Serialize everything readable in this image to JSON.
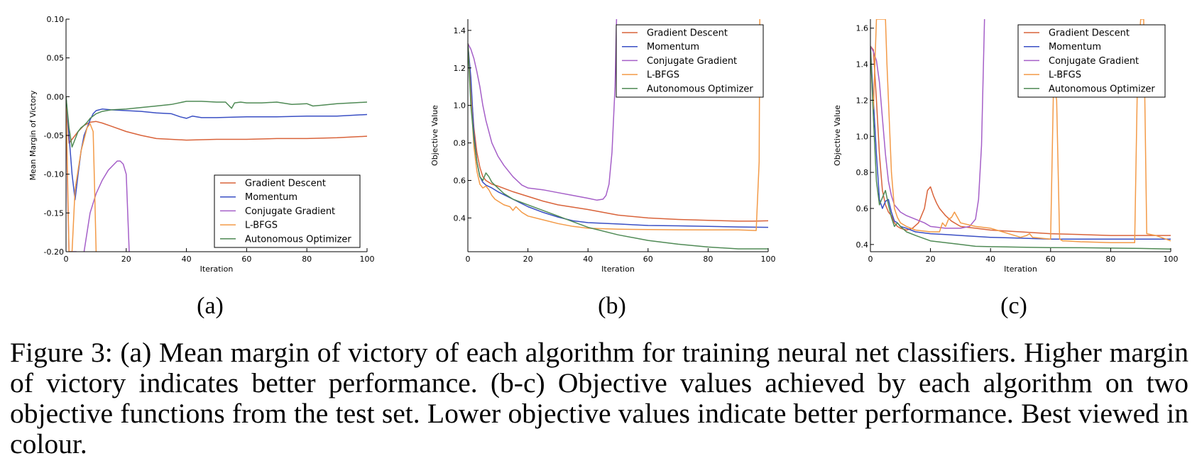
{
  "figure": {
    "caption": "Figure 3:  (a) Mean margin of victory of each algorithm for training neural net classifiers. Higher margin of victory indicates better performance. (b-c) Objective values achieved by each algorithm on two objective functions from the test set. Lower objective values indicate better performance. Best viewed in colour."
  },
  "colors": {
    "Gradient Descent": "#d9633a",
    "Momentum": "#3a4fc4",
    "Conjugate Gradient": "#a55fc8",
    "L-BFGS": "#f39a47",
    "Autonomous Optimizer": "#4f8a55"
  },
  "chart_data": [
    {
      "id": "a",
      "type": "line",
      "sublabel": "(a)",
      "xlabel": "Iteration",
      "ylabel": "Mean Margin of Victory",
      "xlim": [
        0,
        100
      ],
      "ylim": [
        -0.2,
        0.1
      ],
      "xticks": [
        0,
        20,
        40,
        60,
        80,
        100
      ],
      "yticks": [
        -0.2,
        -0.15,
        -0.1,
        -0.05,
        0.0,
        0.05,
        0.1
      ],
      "ytick_labels": [
        "-0.20",
        "-0.15",
        "-0.10",
        "-0.05",
        "0.00",
        "0.05",
        "0.10"
      ],
      "legend": "lower-right",
      "series": [
        {
          "name": "Gradient Descent",
          "x": [
            0,
            1,
            2,
            4,
            6,
            8,
            10,
            12,
            15,
            20,
            25,
            30,
            40,
            50,
            60,
            70,
            80,
            90,
            100
          ],
          "y": [
            0,
            -0.06,
            -0.055,
            -0.045,
            -0.037,
            -0.033,
            -0.032,
            -0.034,
            -0.038,
            -0.045,
            -0.05,
            -0.054,
            -0.056,
            -0.055,
            -0.055,
            -0.054,
            -0.054,
            -0.053,
            -0.051
          ]
        },
        {
          "name": "Momentum",
          "x": [
            0,
            1,
            2,
            3,
            4,
            5,
            6,
            7,
            8,
            9,
            10,
            12,
            15,
            20,
            25,
            30,
            35,
            38,
            40,
            42,
            45,
            50,
            60,
            70,
            80,
            90,
            100
          ],
          "y": [
            0,
            -0.05,
            -0.1,
            -0.133,
            -0.1,
            -0.07,
            -0.05,
            -0.04,
            -0.03,
            -0.022,
            -0.018,
            -0.016,
            -0.017,
            -0.018,
            -0.019,
            -0.021,
            -0.022,
            -0.026,
            -0.028,
            -0.025,
            -0.027,
            -0.027,
            -0.026,
            -0.026,
            -0.025,
            -0.025,
            -0.023
          ]
        },
        {
          "name": "Conjugate Gradient",
          "x": [
            0,
            0.5,
            1,
            2,
            3,
            3.5
          ],
          "y": [
            0,
            -0.12,
            -0.2,
            -0.2,
            -0.2,
            -0.2
          ]
        },
        {
          "name": "Conjugate Gradient",
          "x": [
            6,
            8,
            10,
            12,
            14,
            16,
            17,
            18,
            19,
            20,
            21
          ],
          "y": [
            -0.2,
            -0.15,
            -0.125,
            -0.108,
            -0.095,
            -0.087,
            -0.083,
            -0.083,
            -0.087,
            -0.1,
            -0.2
          ]
        },
        {
          "name": "L-BFGS",
          "x": [
            0,
            1,
            2,
            3,
            5,
            7,
            8,
            9,
            9.5,
            10
          ],
          "y": [
            0,
            -0.2,
            -0.2,
            -0.12,
            -0.07,
            -0.04,
            -0.035,
            -0.045,
            -0.12,
            -0.2
          ]
        },
        {
          "name": "Autonomous Optimizer",
          "x": [
            0,
            1,
            2,
            3,
            4,
            5,
            6,
            7,
            8,
            10,
            12,
            15,
            20,
            25,
            30,
            35,
            40,
            45,
            50,
            53,
            55,
            56,
            58,
            60,
            65,
            70,
            75,
            80,
            82,
            85,
            90,
            95,
            100
          ],
          "y": [
            0,
            -0.04,
            -0.065,
            -0.055,
            -0.045,
            -0.04,
            -0.037,
            -0.033,
            -0.028,
            -0.022,
            -0.019,
            -0.017,
            -0.016,
            -0.014,
            -0.012,
            -0.01,
            -0.006,
            -0.006,
            -0.007,
            -0.007,
            -0.015,
            -0.008,
            -0.007,
            -0.008,
            -0.008,
            -0.007,
            -0.01,
            -0.009,
            -0.012,
            -0.011,
            -0.009,
            -0.008,
            -0.007
          ]
        }
      ]
    },
    {
      "id": "b",
      "type": "line",
      "sublabel": "(b)",
      "xlabel": "Iteration",
      "ylabel": "Objective Value",
      "xlim": [
        0,
        100
      ],
      "ylim": [
        0.22,
        1.46
      ],
      "xticks": [
        0,
        20,
        40,
        60,
        80,
        100
      ],
      "yticks": [
        0.4,
        0.6,
        0.8,
        1.0,
        1.2,
        1.4
      ],
      "ytick_labels": [
        "0.4",
        "0.6",
        "0.8",
        "1.0",
        "1.2",
        "1.4"
      ],
      "legend": "top-right",
      "series": [
        {
          "name": "Gradient Descent",
          "x": [
            0,
            1,
            2,
            3,
            4,
            5,
            6,
            8,
            10,
            15,
            20,
            25,
            30,
            40,
            50,
            60,
            70,
            80,
            90,
            95,
            100
          ],
          "y": [
            1.33,
            1.1,
            0.88,
            0.75,
            0.67,
            0.62,
            0.6,
            0.58,
            0.57,
            0.54,
            0.515,
            0.49,
            0.47,
            0.445,
            0.415,
            0.4,
            0.392,
            0.387,
            0.383,
            0.383,
            0.385
          ]
        },
        {
          "name": "Momentum",
          "x": [
            0,
            1,
            2,
            3,
            4,
            5,
            6,
            8,
            10,
            15,
            20,
            25,
            30,
            35,
            40,
            50,
            60,
            70,
            80,
            90,
            100
          ],
          "y": [
            1.33,
            1.15,
            0.85,
            0.7,
            0.62,
            0.59,
            0.575,
            0.56,
            0.54,
            0.5,
            0.46,
            0.43,
            0.405,
            0.385,
            0.375,
            0.368,
            0.36,
            0.358,
            0.355,
            0.352,
            0.35
          ]
        },
        {
          "name": "Conjugate Gradient",
          "x": [
            0,
            1,
            2,
            3,
            4,
            5,
            6,
            7,
            8,
            10,
            12,
            15,
            18,
            20,
            25,
            30,
            35,
            40,
            43,
            45,
            46,
            47,
            48,
            49,
            49.5
          ],
          "y": [
            1.33,
            1.3,
            1.25,
            1.18,
            1.1,
            1.0,
            0.92,
            0.86,
            0.8,
            0.73,
            0.68,
            0.62,
            0.575,
            0.56,
            0.55,
            0.535,
            0.52,
            0.505,
            0.495,
            0.5,
            0.52,
            0.58,
            0.75,
            1.1,
            1.46
          ]
        },
        {
          "name": "L-BFGS",
          "x": [
            0,
            1,
            2,
            3,
            4,
            5,
            6,
            7,
            8,
            9,
            10,
            12,
            14,
            15,
            16,
            18,
            20,
            25,
            30,
            35,
            40,
            50,
            60,
            70,
            80,
            90,
            96,
            97,
            97.2
          ],
          "y": [
            1.33,
            1.05,
            0.78,
            0.65,
            0.58,
            0.56,
            0.57,
            0.55,
            0.52,
            0.5,
            0.49,
            0.47,
            0.46,
            0.44,
            0.46,
            0.43,
            0.41,
            0.39,
            0.37,
            0.355,
            0.345,
            0.34,
            0.338,
            0.337,
            0.336,
            0.336,
            0.333,
            0.7,
            1.46
          ]
        },
        {
          "name": "Autonomous Optimizer",
          "x": [
            0,
            1,
            2,
            3,
            4,
            5,
            6,
            7,
            8,
            10,
            12,
            15,
            20,
            25,
            30,
            35,
            40,
            50,
            60,
            70,
            80,
            90,
            100
          ],
          "y": [
            1.33,
            1.0,
            0.82,
            0.7,
            0.62,
            0.6,
            0.64,
            0.62,
            0.59,
            0.56,
            0.53,
            0.5,
            0.47,
            0.44,
            0.41,
            0.38,
            0.35,
            0.31,
            0.28,
            0.26,
            0.245,
            0.235,
            0.235
          ]
        }
      ]
    },
    {
      "id": "c",
      "type": "line",
      "sublabel": "(c)",
      "xlabel": "Iteration",
      "ylabel": "Objective Value",
      "xlim": [
        0,
        100
      ],
      "ylim": [
        0.36,
        1.65
      ],
      "xticks": [
        0,
        20,
        40,
        60,
        80,
        100
      ],
      "yticks": [
        0.4,
        0.6,
        0.8,
        1.0,
        1.2,
        1.4,
        1.6
      ],
      "ytick_labels": [
        "0.4",
        "0.6",
        "0.8",
        "1.0",
        "1.2",
        "1.4",
        "1.6"
      ],
      "legend": "top-right",
      "series": [
        {
          "name": "Gradient Descent",
          "x": [
            0,
            1,
            2,
            3,
            4,
            5,
            6,
            7,
            8,
            9,
            10,
            12,
            14,
            16,
            18,
            19,
            20,
            21,
            22,
            23,
            25,
            27,
            30,
            35,
            40,
            50,
            60,
            70,
            80,
            90,
            100
          ],
          "y": [
            1.5,
            1.48,
            1.2,
            0.9,
            0.7,
            0.62,
            0.58,
            0.56,
            0.52,
            0.5,
            0.49,
            0.48,
            0.49,
            0.52,
            0.6,
            0.7,
            0.72,
            0.67,
            0.63,
            0.6,
            0.56,
            0.53,
            0.5,
            0.49,
            0.48,
            0.47,
            0.46,
            0.455,
            0.45,
            0.45,
            0.45
          ]
        },
        {
          "name": "Momentum",
          "x": [
            0,
            1,
            2,
            3,
            4,
            5,
            6,
            7,
            8,
            9,
            10,
            12,
            15,
            20,
            25,
            30,
            40,
            50,
            60,
            70,
            80,
            90,
            100
          ],
          "y": [
            1.5,
            1.2,
            0.9,
            0.65,
            0.6,
            0.64,
            0.65,
            0.58,
            0.53,
            0.52,
            0.5,
            0.49,
            0.47,
            0.46,
            0.455,
            0.45,
            0.44,
            0.435,
            0.43,
            0.43,
            0.43,
            0.43,
            0.43
          ]
        },
        {
          "name": "Conjugate Gradient",
          "x": [
            0,
            1,
            2,
            3,
            4,
            5,
            6,
            7,
            8,
            9,
            10,
            12,
            15,
            18,
            20,
            25,
            30,
            33,
            35,
            36,
            37,
            37.5,
            38
          ],
          "y": [
            1.5,
            1.47,
            1.42,
            1.3,
            1.1,
            0.9,
            0.75,
            0.67,
            0.62,
            0.6,
            0.58,
            0.56,
            0.54,
            0.52,
            0.5,
            0.49,
            0.49,
            0.5,
            0.54,
            0.65,
            0.95,
            1.3,
            1.65
          ]
        },
        {
          "name": "L-BFGS",
          "x": [
            0,
            0.5,
            1,
            1.5,
            2,
            3,
            4,
            5,
            5.5,
            6,
            7,
            8,
            9,
            10,
            12,
            15,
            20,
            23,
            24,
            25,
            26,
            27,
            28,
            30,
            35,
            40,
            50,
            52,
            53,
            54,
            60,
            61,
            62,
            63,
            64,
            65,
            70,
            80,
            88,
            89,
            90,
            91,
            92,
            95,
            100
          ],
          "y": [
            1.5,
            1.3,
            1.15,
            1.4,
            1.65,
            1.65,
            1.65,
            1.65,
            1.4,
            1.2,
            0.8,
            0.6,
            0.55,
            0.52,
            0.5,
            0.48,
            0.47,
            0.47,
            0.52,
            0.5,
            0.54,
            0.55,
            0.58,
            0.52,
            0.5,
            0.49,
            0.44,
            0.45,
            0.46,
            0.44,
            0.43,
            1.3,
            1.2,
            0.43,
            0.42,
            0.42,
            0.415,
            0.41,
            0.41,
            1.4,
            1.65,
            1.65,
            0.46,
            0.45,
            0.42
          ]
        },
        {
          "name": "Autonomous Optimizer",
          "x": [
            0,
            1,
            2,
            3,
            4,
            5,
            6,
            7,
            8,
            9,
            10,
            12,
            15,
            20,
            25,
            30,
            35,
            40,
            50,
            60,
            70,
            80,
            90,
            100
          ],
          "y": [
            1.5,
            1.1,
            0.75,
            0.62,
            0.66,
            0.7,
            0.62,
            0.55,
            0.5,
            0.52,
            0.5,
            0.47,
            0.45,
            0.42,
            0.41,
            0.4,
            0.39,
            0.388,
            0.385,
            0.383,
            0.382,
            0.38,
            0.378,
            0.375
          ]
        }
      ]
    }
  ]
}
